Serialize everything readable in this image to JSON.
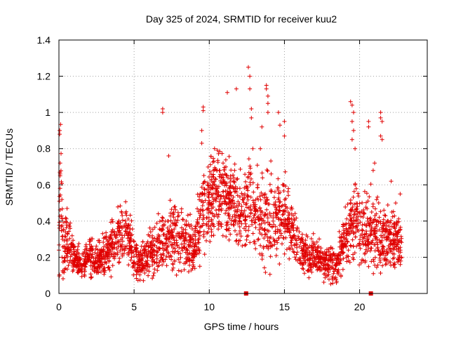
{
  "chart_data": {
    "type": "scatter",
    "title": "Day 325 of 2024, SRMTID for receiver kuu2",
    "xlabel": "GPS time / hours",
    "ylabel": "SRMTID / TECUs",
    "xlim": [
      0,
      24.5
    ],
    "ylim": [
      0,
      1.4
    ],
    "xticks": [
      "0",
      "5",
      "10",
      "15",
      "20"
    ],
    "xtick_values": [
      0,
      5,
      10,
      15,
      20
    ],
    "yticks": [
      "0",
      "0.2",
      "0.4",
      "0.6",
      "0.8",
      "1",
      "1.2",
      "1.4"
    ],
    "ytick_values": [
      0,
      0.2,
      0.4,
      0.6,
      0.8,
      1.0,
      1.2,
      1.4
    ],
    "grid": true,
    "marker": "+",
    "series_color": "#e00000",
    "gap_markers_x": [
      12.45,
      20.75
    ],
    "series": [
      {
        "name": "SRMTID",
        "envelope": [
          [
            0.0,
            0.2,
            0.15
          ],
          [
            0.1,
            0.7,
            0.25
          ],
          [
            0.3,
            0.25,
            0.12
          ],
          [
            0.6,
            0.3,
            0.13
          ],
          [
            1.0,
            0.2,
            0.07
          ],
          [
            1.5,
            0.15,
            0.05
          ],
          [
            2.0,
            0.22,
            0.08
          ],
          [
            2.5,
            0.18,
            0.07
          ],
          [
            3.0,
            0.2,
            0.09
          ],
          [
            3.5,
            0.28,
            0.1
          ],
          [
            4.0,
            0.3,
            0.1
          ],
          [
            4.5,
            0.35,
            0.12
          ],
          [
            5.0,
            0.2,
            0.08
          ],
          [
            5.5,
            0.17,
            0.07
          ],
          [
            6.0,
            0.22,
            0.08
          ],
          [
            6.5,
            0.26,
            0.1
          ],
          [
            7.0,
            0.3,
            0.12
          ],
          [
            7.5,
            0.33,
            0.12
          ],
          [
            8.0,
            0.3,
            0.1
          ],
          [
            8.5,
            0.28,
            0.1
          ],
          [
            9.0,
            0.25,
            0.08
          ],
          [
            9.5,
            0.45,
            0.15
          ],
          [
            10.0,
            0.5,
            0.15
          ],
          [
            10.5,
            0.6,
            0.15
          ],
          [
            11.0,
            0.55,
            0.15
          ],
          [
            11.5,
            0.5,
            0.15
          ],
          [
            12.0,
            0.45,
            0.15
          ],
          [
            12.5,
            0.5,
            0.18
          ],
          [
            13.0,
            0.45,
            0.15
          ],
          [
            13.5,
            0.4,
            0.18
          ],
          [
            14.0,
            0.45,
            0.2
          ],
          [
            14.5,
            0.4,
            0.15
          ],
          [
            15.0,
            0.45,
            0.15
          ],
          [
            15.5,
            0.35,
            0.1
          ],
          [
            16.0,
            0.25,
            0.08
          ],
          [
            16.5,
            0.2,
            0.07
          ],
          [
            17.0,
            0.2,
            0.07
          ],
          [
            17.5,
            0.18,
            0.07
          ],
          [
            18.0,
            0.17,
            0.07
          ],
          [
            18.5,
            0.15,
            0.07
          ],
          [
            19.0,
            0.3,
            0.12
          ],
          [
            19.5,
            0.4,
            0.15
          ],
          [
            20.0,
            0.4,
            0.15
          ],
          [
            20.5,
            0.35,
            0.15
          ],
          [
            21.0,
            0.35,
            0.15
          ],
          [
            21.5,
            0.3,
            0.12
          ],
          [
            22.0,
            0.3,
            0.12
          ],
          [
            22.5,
            0.3,
            0.1
          ],
          [
            22.8,
            0.25,
            0.08
          ]
        ],
        "outliers": [
          [
            0.05,
            0.9
          ],
          [
            0.05,
            0.88
          ],
          [
            0.08,
            0.72
          ],
          [
            0.08,
            0.66
          ],
          [
            0.08,
            0.65
          ],
          [
            6.9,
            1.02
          ],
          [
            6.9,
            1.0
          ],
          [
            7.3,
            0.76
          ],
          [
            9.6,
            1.03
          ],
          [
            9.6,
            1.01
          ],
          [
            9.5,
            0.9
          ],
          [
            9.5,
            0.83
          ],
          [
            11.2,
            1.11
          ],
          [
            11.8,
            1.13
          ],
          [
            12.6,
            1.25
          ],
          [
            12.7,
            1.2
          ],
          [
            12.7,
            1.13
          ],
          [
            12.8,
            1.02
          ],
          [
            12.8,
            0.97
          ],
          [
            13.8,
            1.15
          ],
          [
            13.8,
            1.13
          ],
          [
            13.9,
            1.09
          ],
          [
            13.9,
            1.05
          ],
          [
            13.9,
            1.0
          ],
          [
            13.5,
            0.92
          ],
          [
            14.6,
            1.0
          ],
          [
            14.7,
            0.93
          ],
          [
            15.0,
            0.95
          ],
          [
            15.0,
            0.87
          ],
          [
            13.4,
            0.8
          ],
          [
            12.9,
            0.8
          ],
          [
            19.4,
            1.06
          ],
          [
            19.5,
            1.04
          ],
          [
            19.6,
            1.0
          ],
          [
            19.5,
            0.95
          ],
          [
            19.6,
            0.9
          ],
          [
            19.5,
            0.85
          ],
          [
            19.7,
            0.8
          ],
          [
            20.6,
            0.95
          ],
          [
            20.6,
            0.92
          ],
          [
            21.4,
            1.0
          ],
          [
            21.4,
            0.97
          ],
          [
            21.5,
            0.95
          ],
          [
            21.4,
            0.87
          ],
          [
            21.5,
            0.85
          ],
          [
            20.9,
            0.68
          ],
          [
            21.0,
            0.72
          ],
          [
            22.1,
            0.62
          ],
          [
            22.7,
            0.55
          ],
          [
            22.4,
            0.5
          ]
        ]
      }
    ]
  }
}
